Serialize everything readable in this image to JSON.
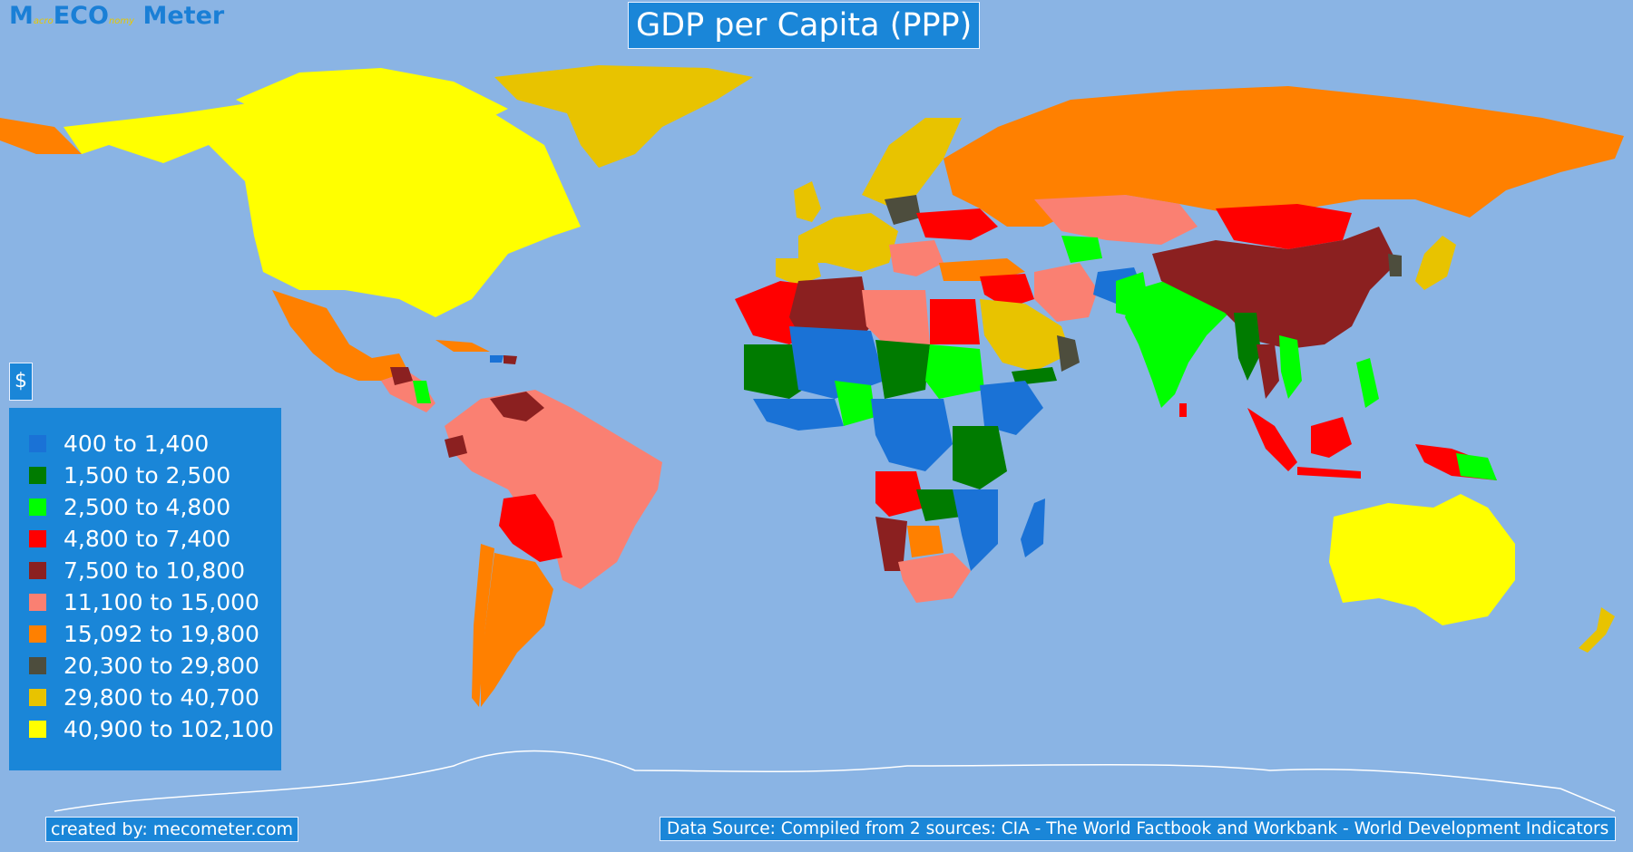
{
  "logo": {
    "part1": "M",
    "part2": "acro",
    "part3": "ECO",
    "part4": "nomy",
    "part5": " Meter"
  },
  "title": "GDP per Capita (PPP)",
  "unit_symbol": "$",
  "legend": [
    {
      "label": "400 to 1,400",
      "color": "#1a72d6"
    },
    {
      "label": "1,500 to 2,500",
      "color": "#007b00"
    },
    {
      "label": "2,500 to 4,800",
      "color": "#00ff00"
    },
    {
      "label": "4,800 to 7,400",
      "color": "#ff0000"
    },
    {
      "label": "7,500 to 10,800",
      "color": "#8b2020"
    },
    {
      "label": "11,100 to 15,000",
      "color": "#fa8072"
    },
    {
      "label": "15,092 to 19,800",
      "color": "#ff8000"
    },
    {
      "label": "20,300 to 29,800",
      "color": "#4d4d3d"
    },
    {
      "label": "29,800 to 40,700",
      "color": "#e8c300"
    },
    {
      "label": "40,900 to 102,100",
      "color": "#ffff00"
    }
  ],
  "footer": {
    "credit": "created by: mecometer.com",
    "source": "Data Source: Compiled from 2 sources: CIA - The World Factbook and Workbank - World Development Indicators"
  },
  "colors": {
    "ocean": "#8ab4e4",
    "panel": "#1a86d8"
  }
}
